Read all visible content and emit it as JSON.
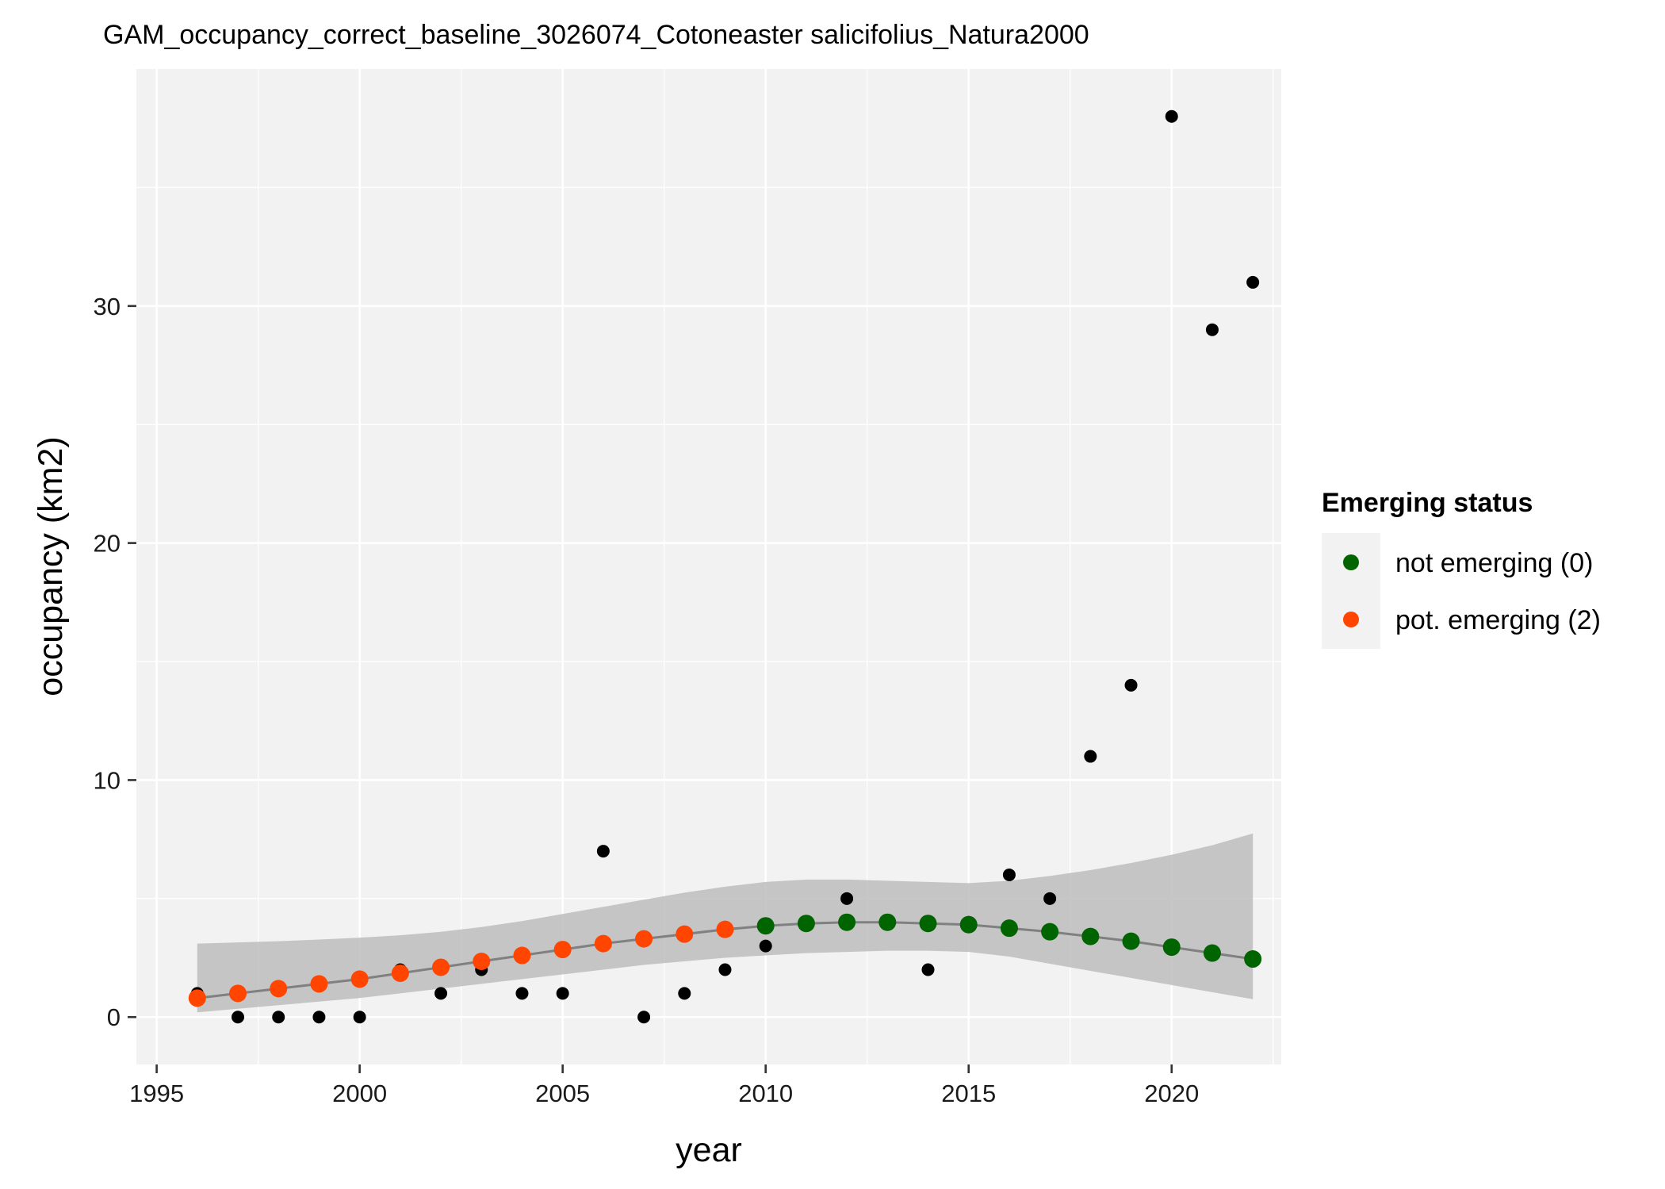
{
  "chart_data": {
    "type": "scatter",
    "title": "GAM_occupancy_correct_baseline_3026074_Cotoneaster salicifolius_Natura2000",
    "xlabel": "year",
    "ylabel": "occupancy (km2)",
    "xlim": [
      1994.5,
      2022.7
    ],
    "ylim": [
      -2,
      40
    ],
    "x_ticks": [
      1995,
      2000,
      2005,
      2010,
      2015,
      2020
    ],
    "y_ticks": [
      0,
      10,
      20,
      30
    ],
    "grid": true,
    "legend": {
      "title": "Emerging status",
      "placement": "right",
      "entries": [
        {
          "label": "not emerging (0)",
          "color": "#006400"
        },
        {
          "label": "pot. emerging (2)",
          "color": "#FF4500"
        }
      ]
    },
    "observed": {
      "color": "#000000",
      "x": [
        1996,
        1997,
        1998,
        1999,
        2000,
        2001,
        2002,
        2003,
        2004,
        2005,
        2006,
        2007,
        2008,
        2009,
        2010,
        2011,
        2012,
        2013,
        2014,
        2015,
        2016,
        2017,
        2018,
        2019,
        2020,
        2021,
        2022
      ],
      "y": [
        1,
        0,
        0,
        0,
        0,
        2,
        1,
        2,
        1,
        1,
        7,
        0,
        1,
        2,
        3,
        4,
        5,
        4,
        2,
        4,
        6,
        5,
        11,
        14,
        38,
        29,
        31
      ]
    },
    "fitted": {
      "line_color": "#808080",
      "band_color": "#BDBDBD",
      "x": [
        1996,
        1997,
        1998,
        1999,
        2000,
        2001,
        2002,
        2003,
        2004,
        2005,
        2006,
        2007,
        2008,
        2009,
        2010,
        2011,
        2012,
        2013,
        2014,
        2015,
        2016,
        2017,
        2018,
        2019,
        2020,
        2021,
        2022
      ],
      "y": [
        0.8,
        1.0,
        1.2,
        1.4,
        1.6,
        1.85,
        2.1,
        2.35,
        2.6,
        2.85,
        3.1,
        3.3,
        3.5,
        3.7,
        3.85,
        3.95,
        4.0,
        4.0,
        3.95,
        3.9,
        3.75,
        3.6,
        3.4,
        3.2,
        2.95,
        2.7,
        2.45
      ],
      "lower": [
        0.2,
        0.35,
        0.5,
        0.65,
        0.8,
        1.0,
        1.2,
        1.4,
        1.6,
        1.8,
        2.0,
        2.2,
        2.35,
        2.5,
        2.6,
        2.7,
        2.75,
        2.8,
        2.8,
        2.75,
        2.55,
        2.25,
        1.95,
        1.65,
        1.35,
        1.05,
        0.75
      ],
      "upper": [
        3.1,
        3.15,
        3.2,
        3.27,
        3.35,
        3.45,
        3.6,
        3.8,
        4.05,
        4.35,
        4.65,
        4.95,
        5.25,
        5.5,
        5.7,
        5.8,
        5.8,
        5.75,
        5.7,
        5.65,
        5.75,
        5.95,
        6.2,
        6.5,
        6.85,
        7.25,
        7.75
      ],
      "status": [
        2,
        2,
        2,
        2,
        2,
        2,
        2,
        2,
        2,
        2,
        2,
        2,
        2,
        2,
        0,
        0,
        0,
        0,
        0,
        0,
        0,
        0,
        0,
        0,
        0,
        0,
        0
      ]
    }
  }
}
